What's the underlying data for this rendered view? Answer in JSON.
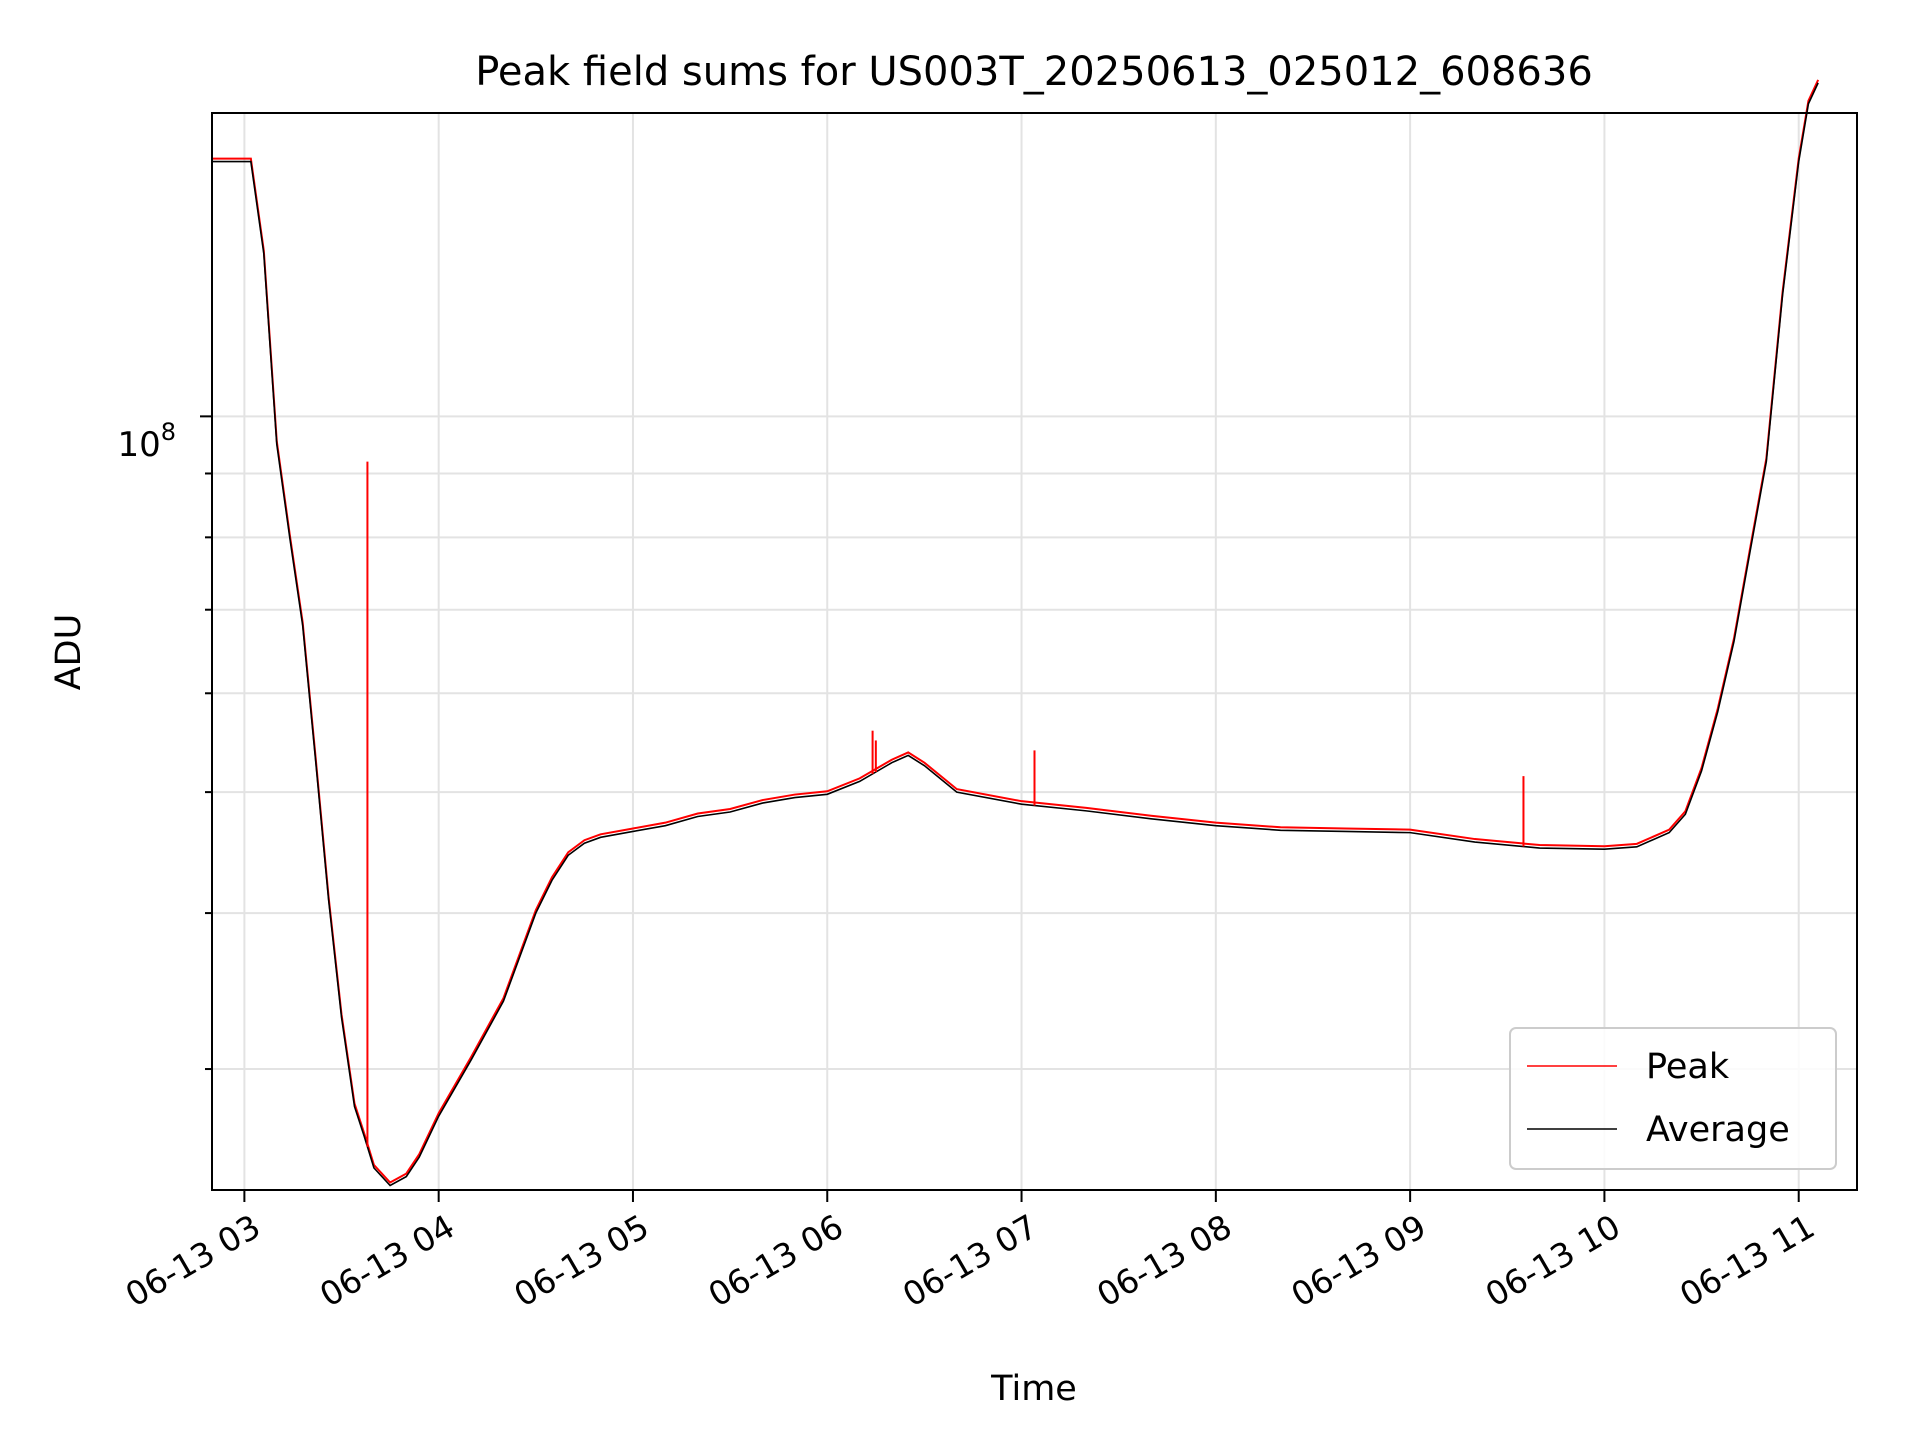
{
  "chart_data": {
    "type": "line",
    "title": "Peak field sums for US003T_20250613_025012_608636",
    "xlabel": "Time",
    "ylabel": "ADU",
    "yscale": "log",
    "grid": true,
    "legend_position": "lower-right",
    "xlim": [
      "2025-06-13 02:50",
      "2025-06-13 11:18"
    ],
    "ylim": [
      24000000,
      175000000
    ],
    "x_ticks": [
      {
        "value": "2025-06-13 03:00",
        "label": "06-13 03"
      },
      {
        "value": "2025-06-13 04:00",
        "label": "06-13 04"
      },
      {
        "value": "2025-06-13 05:00",
        "label": "06-13 05"
      },
      {
        "value": "2025-06-13 06:00",
        "label": "06-13 06"
      },
      {
        "value": "2025-06-13 07:00",
        "label": "06-13 07"
      },
      {
        "value": "2025-06-13 08:00",
        "label": "06-13 08"
      },
      {
        "value": "2025-06-13 09:00",
        "label": "06-13 09"
      },
      {
        "value": "2025-06-13 10:00",
        "label": "06-13 10"
      },
      {
        "value": "2025-06-13 11:00",
        "label": "06-13 11"
      }
    ],
    "y_major_tick": {
      "value": 100000000,
      "label_base": "10",
      "label_exponent": "8"
    },
    "y_minor_ticks": [
      30000000,
      40000000,
      50000000,
      60000000,
      70000000,
      80000000,
      90000000
    ],
    "series": [
      {
        "name": "Average",
        "color": "#000000",
        "x": [
          "2025-06-13 02:50",
          "2025-06-13 02:54",
          "2025-06-13 03:02",
          "2025-06-13 03:06",
          "2025-06-13 03:10",
          "2025-06-13 03:14",
          "2025-06-13 03:18",
          "2025-06-13 03:22",
          "2025-06-13 03:26",
          "2025-06-13 03:30",
          "2025-06-13 03:34",
          "2025-06-13 03:37",
          "2025-06-13 03:40",
          "2025-06-13 03:45",
          "2025-06-13 03:50",
          "2025-06-13 03:54",
          "2025-06-13 04:00",
          "2025-06-13 04:10",
          "2025-06-13 04:20",
          "2025-06-13 04:30",
          "2025-06-13 04:35",
          "2025-06-13 04:40",
          "2025-06-13 04:45",
          "2025-06-13 04:50",
          "2025-06-13 05:00",
          "2025-06-13 05:10",
          "2025-06-13 05:20",
          "2025-06-13 05:30",
          "2025-06-13 05:40",
          "2025-06-13 05:50",
          "2025-06-13 06:00",
          "2025-06-13 06:10",
          "2025-06-13 06:20",
          "2025-06-13 06:25",
          "2025-06-13 06:30",
          "2025-06-13 06:40",
          "2025-06-13 07:00",
          "2025-06-13 07:20",
          "2025-06-13 07:40",
          "2025-06-13 08:00",
          "2025-06-13 08:20",
          "2025-06-13 08:40",
          "2025-06-13 09:00",
          "2025-06-13 09:20",
          "2025-06-13 09:40",
          "2025-06-13 10:00",
          "2025-06-13 10:10",
          "2025-06-13 10:20",
          "2025-06-13 10:25",
          "2025-06-13 10:30",
          "2025-06-13 10:35",
          "2025-06-13 10:40",
          "2025-06-13 10:45",
          "2025-06-13 10:50",
          "2025-06-13 10:55",
          "2025-06-13 11:00",
          "2025-06-13 11:03",
          "2025-06-13 11:06"
        ],
        "values": [
          160000000,
          160000000,
          160000000,
          135000000,
          95000000,
          80000000,
          68000000,
          53000000,
          41000000,
          33000000,
          28000000,
          26500000,
          25000000,
          24200000,
          24600000,
          25500000,
          27500000,
          30500000,
          34000000,
          40000000,
          42500000,
          44500000,
          45500000,
          46000000,
          46500000,
          47000000,
          47800000,
          48200000,
          49000000,
          49500000,
          49800000,
          51000000,
          52800000,
          53500000,
          52500000,
          50000000,
          48900000,
          48300000,
          47600000,
          47000000,
          46600000,
          46500000,
          46400000,
          45600000,
          45100000,
          45000000,
          45200000,
          46400000,
          48000000,
          52000000,
          58000000,
          66000000,
          78000000,
          92000000,
          125000000,
          160000000,
          178000000,
          185000000
        ]
      },
      {
        "name": "Peak",
        "color": "#ff0000",
        "x": [
          "2025-06-13 03:38",
          "2025-06-13 06:14",
          "2025-06-13 06:15",
          "2025-06-13 07:04",
          "2025-06-13 09:35"
        ],
        "spike_values": [
          92000000,
          56000000,
          55000000,
          54000000,
          51500000
        ]
      }
    ]
  }
}
